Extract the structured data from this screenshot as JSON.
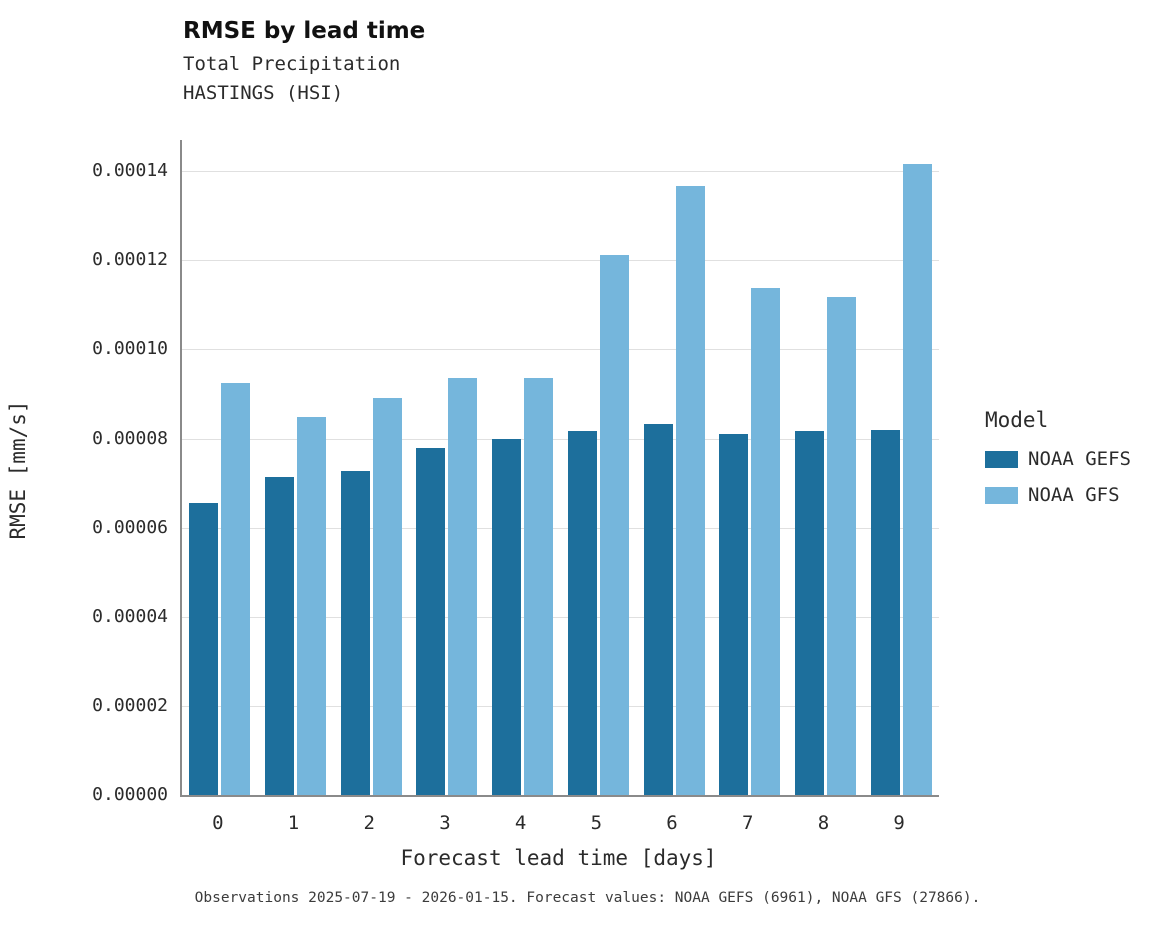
{
  "header": {
    "title": "RMSE by lead time",
    "subtitle1": "Total Precipitation",
    "subtitle2": "HASTINGS (HSI)"
  },
  "caption": "Observations 2025-07-19 - 2026-01-15. Forecast values: NOAA GEFS (6961), NOAA GFS (27866).",
  "legend": {
    "title": "Model",
    "entries": [
      {
        "label": "NOAA GEFS",
        "color": "#1d6f9c"
      },
      {
        "label": "NOAA GFS",
        "color": "#75b6dc"
      }
    ]
  },
  "chart_data": {
    "type": "bar",
    "title": "RMSE by lead time",
    "subtitle": "Total Precipitation — HASTINGS (HSI)",
    "xlabel": "Forecast lead time [days]",
    "ylabel": "RMSE [mm/s]",
    "categories": [
      "0",
      "1",
      "2",
      "3",
      "4",
      "5",
      "6",
      "7",
      "8",
      "9"
    ],
    "series": [
      {
        "name": "NOAA GEFS",
        "color": "#1d6f9c",
        "values": [
          6.55e-05,
          7.14e-05,
          7.27e-05,
          7.79e-05,
          7.98e-05,
          8.16e-05,
          8.32e-05,
          8.1e-05,
          8.18e-05,
          8.2e-05
        ]
      },
      {
        "name": "NOAA GFS",
        "color": "#75b6dc",
        "values": [
          9.25e-05,
          8.49e-05,
          8.9e-05,
          9.37e-05,
          9.35e-05,
          0.0001213,
          0.0001366,
          0.0001139,
          0.0001117,
          0.0001416
        ]
      }
    ],
    "ylim": [
      0,
      0.000147
    ],
    "yticks": [
      0,
      2e-05,
      4e-05,
      6e-05,
      8e-05,
      0.0001,
      0.00012,
      0.00014
    ],
    "ytick_labels": [
      "0.00000",
      "0.00002",
      "0.00004",
      "0.00006",
      "0.00008",
      "0.00010",
      "0.00012",
      "0.00014"
    ],
    "grid": true,
    "legend_title": "Model",
    "legend_position": "right"
  }
}
